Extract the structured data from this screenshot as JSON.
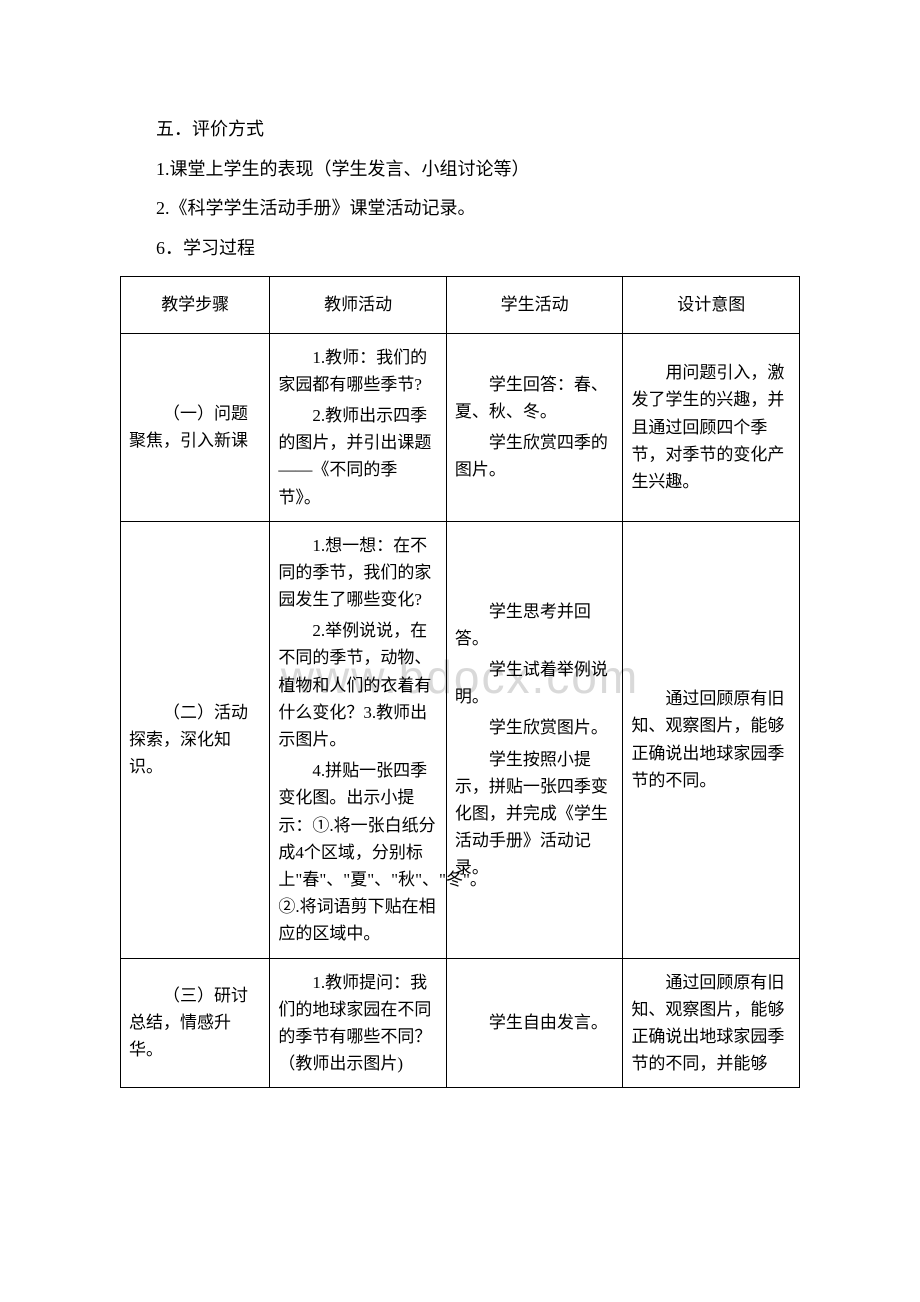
{
  "watermark": "www.bdocx.com",
  "intro": {
    "line1": "五．评价方式",
    "line2": "1.课堂上学生的表现（学生发言、小组讨论等）",
    "line3": "2.《科学学生活动手册》课堂活动记录。",
    "line4": "6．学习过程"
  },
  "table": {
    "header": {
      "c1": "教学步骤",
      "c2": "教师活动",
      "c3": "学生活动",
      "c4": "设计意图"
    },
    "rows": [
      {
        "c1": "（一）问题聚焦，引入新课",
        "c2": [
          "1.教师：我们的家园都有哪些季节?",
          "2.教师出示四季的图片，并引出课题——《不同的季节》。"
        ],
        "c3": [
          "学生回答：春、夏、秋、冬。",
          "学生欣赏四季的图片。"
        ],
        "c4": [
          "用问题引入，激发了学生的兴趣，并且通过回顾四个季节，对季节的变化产生兴趣。"
        ]
      },
      {
        "c1": "（二）活动探索，深化知识。",
        "c2": [
          "1.想一想：在不同的季节，我们的家园发生了哪些变化?",
          "2.举例说说，在不同的季节，动物、植物和人们的衣着有什么变化？3.教师出示图片。",
          "4.拼贴一张四季变化图。出示小提示：①.将一张白纸分成4个区域，分别标上\"春\"、\"夏\"、\"秋\"、\"冬\"。②.将词语剪下贴在相应的区域中。"
        ],
        "c3": [
          "学生思考并回答。",
          "学生试着举例说明。",
          "学生欣赏图片。",
          "学生按照小提示，拼贴一张四季变化图，并完成《学生活动手册》活动记录。"
        ],
        "c4": [
          "通过回顾原有旧知、观察图片，能够正确说出地球家园季节的不同。"
        ]
      },
      {
        "c1": "（三）研讨总结，情感升华。",
        "c2": [
          "1.教师提问：我们的地球家园在不同的季节有哪些不同？（教师出示图片)"
        ],
        "c3": [
          "学生自由发言。"
        ],
        "c4": [
          "通过回顾原有旧知、观察图片，能够正确说出地球家园季节的不同，并能够"
        ]
      }
    ]
  }
}
